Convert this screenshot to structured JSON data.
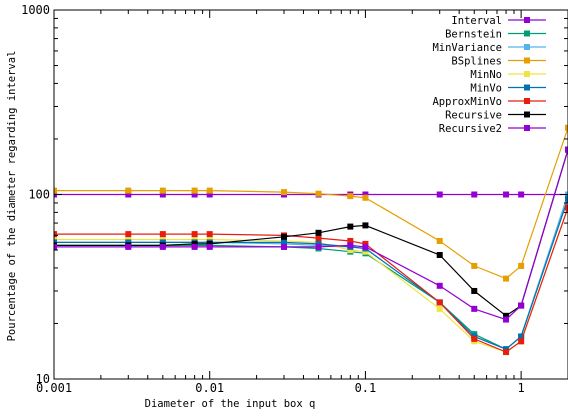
{
  "chart_data": {
    "type": "line",
    "xlabel": "Diameter of the input box q",
    "ylabel": "Pourcentage of the diameter regarding interval",
    "xscale": "log",
    "yscale": "log",
    "xlim": [
      0.001,
      2.0
    ],
    "ylim": [
      10,
      1000
    ],
    "xticks": [
      {
        "value": 0.001,
        "label": "0.001"
      },
      {
        "value": 0.01,
        "label": "0.01"
      },
      {
        "value": 0.1,
        "label": "0.1"
      },
      {
        "value": 1,
        "label": "1"
      }
    ],
    "yticks": [
      {
        "value": 10,
        "label": "10"
      },
      {
        "value": 100,
        "label": "100"
      },
      {
        "value": 1000,
        "label": "1000"
      }
    ],
    "grid": false,
    "legend_position": "top-right",
    "x": [
      0.001,
      0.003,
      0.005,
      0.008,
      0.01,
      0.03,
      0.05,
      0.08,
      0.1,
      0.3,
      0.5,
      0.8,
      1.0,
      2.0
    ],
    "series": [
      {
        "name": "Interval",
        "color": "#9400d3",
        "values": [
          100,
          100,
          100,
          100,
          100,
          100,
          100,
          100,
          100,
          100,
          100,
          100,
          100,
          100
        ]
      },
      {
        "name": "Bernstein",
        "color": "#009e73",
        "values": [
          53,
          53,
          53,
          53,
          53,
          52,
          51,
          49,
          48,
          26,
          17.5,
          14.5,
          17,
          100
        ]
      },
      {
        "name": "MinVariance",
        "color": "#56b4e9",
        "values": [
          55,
          55,
          55,
          55,
          55,
          54,
          53,
          52,
          51,
          26,
          17,
          14.5,
          17,
          100
        ]
      },
      {
        "name": "BSplines",
        "color": "#e69f00",
        "values": [
          105,
          105,
          105,
          105,
          105,
          103,
          101,
          98,
          96,
          56,
          41,
          35,
          41,
          230
        ]
      },
      {
        "name": "MinNo",
        "color": "#f0e442",
        "values": [
          57,
          57,
          57,
          57,
          57,
          56,
          55,
          50,
          49,
          24,
          16,
          14,
          16,
          85
        ]
      },
      {
        "name": "MinVo",
        "color": "#0072b2",
        "values": [
          55,
          55,
          55,
          55,
          55,
          55,
          54,
          52,
          51,
          26,
          17,
          14.5,
          17,
          95
        ]
      },
      {
        "name": "ApproxMinVo",
        "color": "#e51e10",
        "values": [
          61,
          61,
          61,
          61,
          61,
          60,
          58,
          56,
          54,
          26,
          16.5,
          14,
          16,
          85
        ]
      },
      {
        "name": "Recursive",
        "color": "#000000",
        "values": [
          53,
          53,
          53,
          54,
          54,
          59,
          62,
          67,
          68,
          47,
          30,
          22,
          25,
          175
        ]
      },
      {
        "name": "Recursive2",
        "color": "#9400d3",
        "values": [
          52,
          52,
          52,
          52,
          52,
          52,
          52,
          53,
          52,
          32,
          24,
          21,
          25,
          175
        ]
      }
    ]
  }
}
